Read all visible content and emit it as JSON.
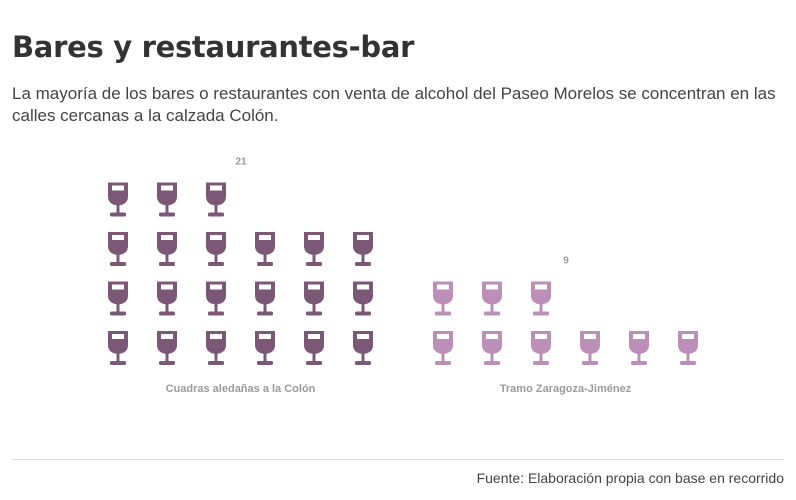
{
  "header": {
    "title": "Bares y restaurantes-bar",
    "subtitle": "La mayoría de los bares o restaurantes con venta de alcohol del Paseo Morelos se concentran en las calles cercanas a la calzada Colón."
  },
  "footer": {
    "source": "Fuente: Elaboración propia con base en recorrido"
  },
  "chart_data": {
    "type": "pictogram",
    "icon": "wine-glass-icon",
    "icons_per_row": 6,
    "grid": false,
    "legend": "none",
    "categories": [
      "Cuadras aledañas a la Colón",
      "Tramo Zaragoza-Jiménez"
    ],
    "values": [
      21,
      9
    ],
    "value_labels": [
      "21",
      "9"
    ],
    "colors": [
      "#7b5876",
      "#bb8fb7"
    ],
    "title": "",
    "xlabel": "",
    "ylabel": ""
  }
}
